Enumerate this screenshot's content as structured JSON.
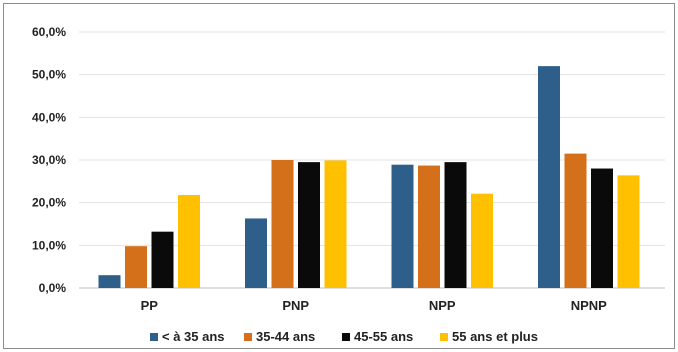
{
  "chart_data": {
    "type": "bar",
    "title": "",
    "xlabel": "",
    "ylabel": "",
    "ylim": [
      0,
      60
    ],
    "yticks": [
      "0,0%",
      "10,0%",
      "20,0%",
      "30,0%",
      "40,0%",
      "50,0%",
      "60,0%"
    ],
    "categories": [
      "PP",
      "PNP",
      "NPP",
      "NPNP"
    ],
    "grid": true,
    "legend_position": "bottom",
    "series": [
      {
        "name": "< à 35 ans",
        "color": "#2e5f8a",
        "values": [
          3.0,
          16.3,
          28.9,
          52.0
        ]
      },
      {
        "name": "35-44 ans",
        "color": "#d46f1a",
        "values": [
          9.8,
          30.0,
          28.7,
          31.5
        ]
      },
      {
        "name": "45-55 ans",
        "color": "#0a0a0a",
        "values": [
          13.2,
          29.5,
          29.5,
          28.0
        ]
      },
      {
        "name": "55 ans et plus",
        "color": "#ffc000",
        "values": [
          21.8,
          29.9,
          22.1,
          26.4
        ]
      }
    ]
  }
}
